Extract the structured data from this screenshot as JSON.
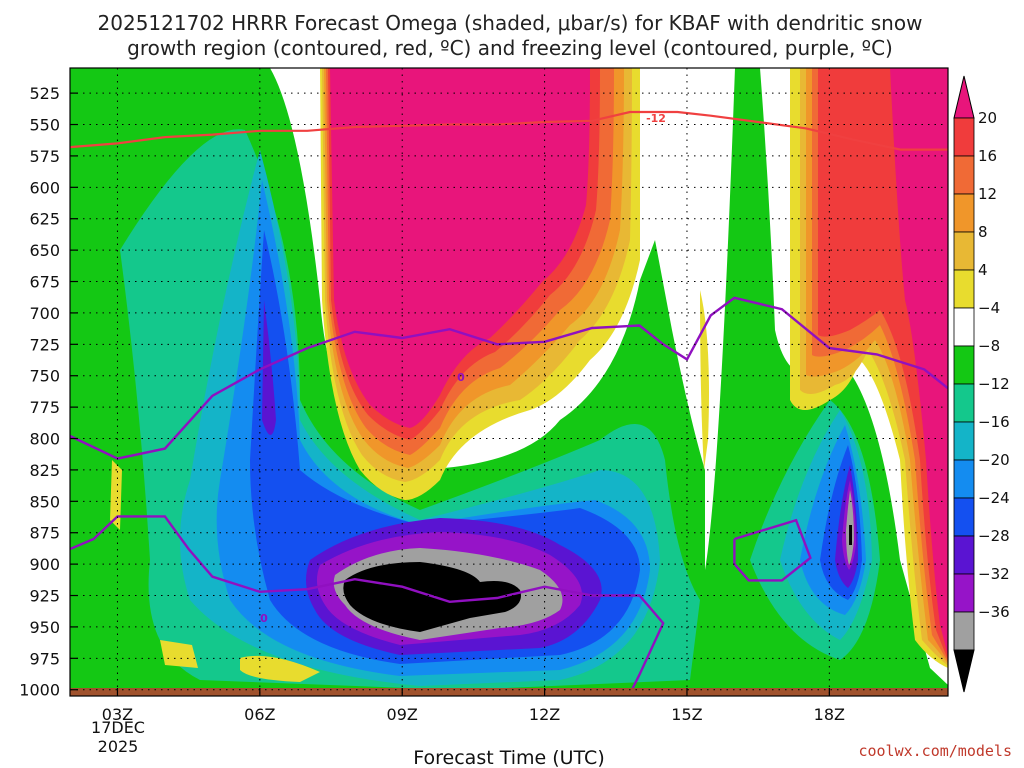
{
  "chart_data": {
    "type": "heatmap",
    "title_line1": "2025121702 HRRR Forecast Omega (shaded, μbar/s) for KBAF with dendritic snow",
    "title_line2": "growth region (contoured, red, ºC) and freezing level (contoured, purple, ºC)",
    "xlabel": "Forecast Time (UTC)",
    "credit": "coolwx.com/models",
    "x_hours": [
      2,
      20.5
    ],
    "x_ticks": [
      {
        "hour": 3,
        "label": "03Z"
      },
      {
        "hour": 6,
        "label": "06Z"
      },
      {
        "hour": 9,
        "label": "09Z"
      },
      {
        "hour": 12,
        "label": "12Z"
      },
      {
        "hour": 15,
        "label": "15Z"
      },
      {
        "hour": 18,
        "label": "18Z"
      }
    ],
    "x_date_label": [
      "17DEC",
      "2025"
    ],
    "y_levels": [
      525,
      550,
      575,
      600,
      625,
      650,
      675,
      700,
      725,
      750,
      775,
      800,
      825,
      850,
      875,
      900,
      925,
      950,
      975,
      1000
    ],
    "y_range_hpa": [
      505,
      1005
    ],
    "colorbar": {
      "levels": [
        20,
        16,
        12,
        8,
        4,
        -4,
        -8,
        -12,
        -16,
        -20,
        -24,
        -28,
        -32,
        -36
      ],
      "labels": [
        "20",
        "16",
        "12",
        "8",
        "4",
        "−4",
        "−8",
        "−12",
        "−16",
        "−20",
        "−24",
        "−28",
        "−32",
        "−36"
      ],
      "colors": [
        "#e8157b",
        "#f03c3c",
        "#f06a36",
        "#f0962a",
        "#e8b834",
        "#e8dc2e",
        "#ffffff",
        "#14c814",
        "#14c88c",
        "#14b4c8",
        "#148cf0",
        "#1450f0",
        "#5a14d2",
        "#9614c8",
        "#a0a0a0",
        "#000000"
      ]
    },
    "omega_features": [
      {
        "name": "upper-positive-region",
        "value": 20,
        "color": "#e8157b"
      },
      {
        "name": "right-positive-region",
        "value": 20,
        "color": "#e8157b"
      },
      {
        "name": "lower-negative-core",
        "value": -36,
        "color": "#000000"
      },
      {
        "name": "small-negative-core-18z",
        "value": -36,
        "color": "#000000"
      }
    ],
    "dgz_contour": {
      "label": "-12",
      "color": "#f04040",
      "points": [
        [
          2.0,
          568
        ],
        [
          3.0,
          565
        ],
        [
          4.0,
          560
        ],
        [
          5.0,
          558
        ],
        [
          6.0,
          555
        ],
        [
          7.0,
          555
        ],
        [
          8.0,
          552
        ],
        [
          9.0,
          551
        ],
        [
          10.0,
          550
        ],
        [
          11.0,
          550
        ],
        [
          12.0,
          548
        ],
        [
          13.0,
          547
        ],
        [
          13.8,
          540
        ],
        [
          14.8,
          540
        ],
        [
          15.5,
          543
        ],
        [
          16.5,
          548
        ],
        [
          17.5,
          553
        ],
        [
          18.5,
          562
        ],
        [
          19.5,
          570
        ],
        [
          20.5,
          570
        ]
      ]
    },
    "fz_contour_upper": {
      "label": "0",
      "color": "#9010c0",
      "points": [
        [
          2.0,
          798
        ],
        [
          3.0,
          816
        ],
        [
          4.0,
          808
        ],
        [
          5.0,
          766
        ],
        [
          6.0,
          745
        ],
        [
          7.0,
          728
        ],
        [
          8.0,
          715
        ],
        [
          9.0,
          720
        ],
        [
          10.0,
          713
        ],
        [
          11.0,
          725
        ],
        [
          12.0,
          723
        ],
        [
          13.0,
          712
        ],
        [
          14.0,
          710
        ],
        [
          14.5,
          725
        ],
        [
          15.0,
          737
        ],
        [
          15.5,
          702
        ],
        [
          16.0,
          688
        ],
        [
          17.0,
          697
        ],
        [
          18.0,
          728
        ],
        [
          19.0,
          733
        ],
        [
          20.0,
          745
        ],
        [
          20.5,
          760
        ]
      ]
    },
    "fz_contour_lower": {
      "label": "0",
      "color": "#9010c0",
      "points": [
        [
          2.0,
          888
        ],
        [
          2.5,
          880
        ],
        [
          3.0,
          862
        ],
        [
          4.0,
          862
        ],
        [
          4.5,
          888
        ],
        [
          5.0,
          910
        ],
        [
          6.0,
          922
        ],
        [
          7.0,
          920
        ],
        [
          8.0,
          912
        ],
        [
          9.0,
          918
        ],
        [
          10.0,
          930
        ],
        [
          11.0,
          927
        ],
        [
          12.0,
          918
        ],
        [
          13.0,
          925
        ],
        [
          14.0,
          925
        ],
        [
          14.5,
          947
        ],
        [
          14.0,
          988
        ],
        [
          13.8,
          1003
        ]
      ]
    },
    "fz_contour_loop": {
      "color": "#9010c0",
      "points": [
        [
          16.0,
          880
        ],
        [
          17.3,
          865
        ],
        [
          17.6,
          895
        ],
        [
          17.0,
          913
        ],
        [
          16.3,
          913
        ],
        [
          16.0,
          900
        ],
        [
          16.0,
          880
        ]
      ]
    }
  }
}
